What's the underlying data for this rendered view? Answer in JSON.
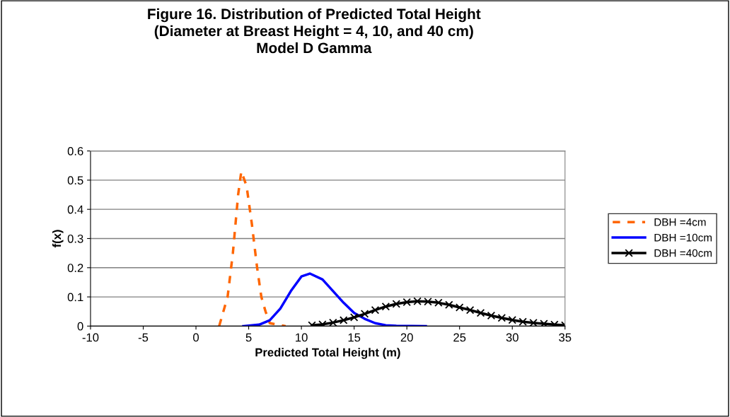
{
  "chart_data": {
    "type": "line",
    "title": "Figure 16. Distribution of Predicted Total Height\n(Diameter at Breast Height = 4, 10, and 40 cm)\nModel D Gamma",
    "xlabel": "Predicted Total Height (m)",
    "ylabel": "f(x)",
    "xlim": [
      -10,
      35
    ],
    "xticks": [
      -10,
      -5,
      0,
      5,
      10,
      15,
      20,
      25,
      30,
      35
    ],
    "ylim": [
      0,
      0.6
    ],
    "yticks": [
      0,
      0.1,
      0.2,
      0.3,
      0.4,
      0.5,
      0.6
    ],
    "grid": "y",
    "legend": "right",
    "series": [
      {
        "name": "DBH =4cm",
        "color": "#ff6600",
        "line_style": "dashed",
        "marker": "none",
        "x": [
          2.2,
          3.0,
          3.5,
          4.0,
          4.3,
          4.8,
          5.3,
          5.8,
          6.2,
          6.6,
          7.0,
          8.5
        ],
        "values": [
          0,
          0.1,
          0.25,
          0.45,
          0.53,
          0.48,
          0.35,
          0.2,
          0.1,
          0.05,
          0.01,
          0
        ]
      },
      {
        "name": "DBH =10cm",
        "color": "#0000ff",
        "line_style": "solid",
        "marker": "none",
        "x": [
          4.5,
          6,
          7,
          8,
          9,
          10,
          10.8,
          12,
          13,
          14,
          15,
          16,
          17,
          18,
          19,
          21.8
        ],
        "values": [
          0,
          0.005,
          0.02,
          0.06,
          0.12,
          0.17,
          0.18,
          0.16,
          0.12,
          0.08,
          0.045,
          0.025,
          0.01,
          0.003,
          0.001,
          0
        ]
      },
      {
        "name": "DBH =40cm",
        "color": "#000000",
        "line_style": "solid",
        "marker": "cross",
        "x": [
          11,
          12,
          13,
          14,
          15,
          16,
          17,
          18,
          19,
          20,
          21,
          22,
          23,
          24,
          25,
          26,
          27,
          28,
          29,
          30,
          31,
          32,
          33,
          34,
          35
        ],
        "values": [
          0.003,
          0.006,
          0.012,
          0.02,
          0.03,
          0.042,
          0.055,
          0.067,
          0.076,
          0.082,
          0.085,
          0.084,
          0.08,
          0.073,
          0.064,
          0.055,
          0.045,
          0.036,
          0.028,
          0.021,
          0.015,
          0.011,
          0.008,
          0.005,
          0.003
        ]
      }
    ]
  }
}
